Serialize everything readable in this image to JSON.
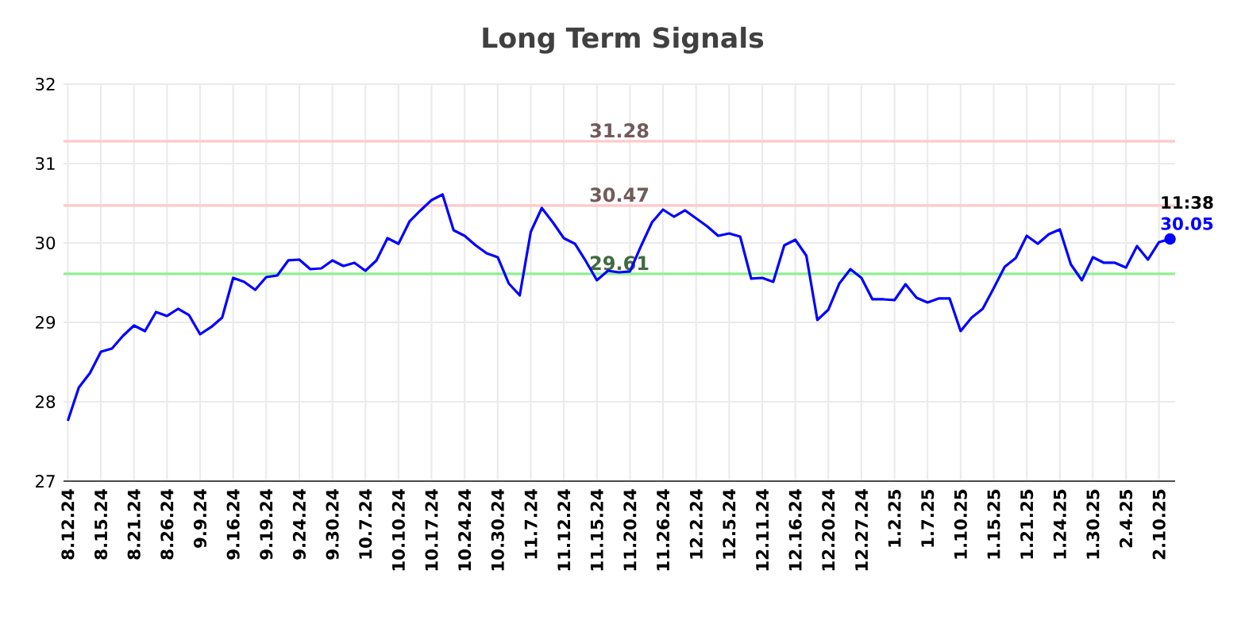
{
  "chart_data": {
    "type": "line",
    "title": "Long Term Signals",
    "categories": [
      "8.12.24",
      null,
      null,
      "8.15.24",
      null,
      null,
      "8.21.24",
      null,
      null,
      "8.26.24",
      null,
      null,
      "9.9.24",
      null,
      null,
      "9.16.24",
      null,
      null,
      "9.19.24",
      null,
      null,
      "9.24.24",
      null,
      null,
      "9.30.24",
      null,
      null,
      "10.7.24",
      null,
      null,
      "10.10.24",
      null,
      null,
      "10.17.24",
      null,
      null,
      "10.24.24",
      null,
      null,
      "10.30.24",
      null,
      null,
      "11.7.24",
      null,
      null,
      "11.12.24",
      null,
      null,
      "11.15.24",
      null,
      null,
      "11.20.24",
      null,
      null,
      "11.26.24",
      null,
      null,
      "12.2.24",
      null,
      null,
      "12.5.24",
      null,
      null,
      "12.11.24",
      null,
      null,
      "12.16.24",
      null,
      null,
      "12.20.24",
      null,
      null,
      "12.27.24",
      null,
      null,
      "1.2.25",
      null,
      null,
      "1.7.25",
      null,
      null,
      "1.10.25",
      null,
      null,
      "1.15.25",
      null,
      null,
      "1.21.25",
      null,
      null,
      "1.24.25",
      null,
      null,
      "1.30.25",
      null,
      null,
      "2.4.25",
      null,
      null,
      "2.10.25",
      null
    ],
    "series": [
      {
        "color": "#0000ff",
        "values": [
          27.76,
          28.18,
          28.36,
          28.63,
          28.67,
          28.83,
          28.96,
          28.89,
          29.13,
          29.08,
          29.17,
          29.09,
          28.85,
          28.94,
          29.06,
          29.56,
          29.51,
          29.41,
          29.57,
          29.59,
          29.78,
          29.79,
          29.67,
          29.68,
          29.78,
          29.71,
          29.75,
          29.65,
          29.78,
          30.06,
          29.99,
          30.27,
          30.41,
          30.54,
          30.61,
          30.16,
          30.09,
          29.97,
          29.87,
          29.82,
          29.49,
          29.34,
          30.14,
          30.44,
          30.26,
          30.06,
          29.99,
          29.77,
          29.53,
          29.65,
          29.63,
          29.64,
          29.96,
          30.26,
          30.42,
          30.33,
          30.41,
          30.31,
          30.21,
          30.09,
          30.12,
          30.08,
          29.55,
          29.56,
          29.51,
          29.97,
          30.04,
          29.84,
          29.03,
          29.16,
          29.49,
          29.67,
          29.56,
          29.29,
          29.29,
          29.28,
          29.48,
          29.31,
          29.25,
          29.3,
          29.3,
          28.89,
          29.06,
          29.17,
          29.43,
          29.7,
          29.81,
          30.09,
          29.99,
          30.11,
          30.17,
          29.73,
          29.53,
          29.82,
          29.75,
          29.75,
          29.69,
          29.96,
          29.79,
          30.01,
          30.05
        ]
      },
      {
        "type": "scatter",
        "color": "#0000ff",
        "marker": "circle",
        "values": [
          null,
          null,
          null,
          null,
          null,
          null,
          null,
          null,
          null,
          null,
          null,
          null,
          null,
          null,
          null,
          null,
          null,
          null,
          null,
          null,
          null,
          null,
          null,
          null,
          null,
          null,
          null,
          null,
          null,
          null,
          null,
          null,
          null,
          null,
          null,
          null,
          null,
          null,
          null,
          null,
          null,
          null,
          null,
          null,
          null,
          null,
          null,
          null,
          null,
          null,
          null,
          null,
          null,
          null,
          null,
          null,
          null,
          null,
          null,
          null,
          null,
          null,
          null,
          null,
          null,
          null,
          null,
          null,
          null,
          null,
          null,
          null,
          null,
          null,
          null,
          null,
          null,
          null,
          null,
          null,
          null,
          null,
          null,
          null,
          null,
          null,
          null,
          null,
          null,
          null,
          null,
          null,
          null,
          null,
          null,
          null,
          null,
          null,
          null,
          null,
          30.05
        ]
      }
    ],
    "ylim": [
      27,
      32
    ],
    "yticks": [
      27,
      28,
      29,
      30,
      31,
      32
    ],
    "grid": true,
    "ref_lines": [
      {
        "axis": "y",
        "value": 31.28,
        "label": "31.28",
        "color": "#ffc8c8"
      },
      {
        "axis": "y",
        "value": 30.47,
        "label": "30.47",
        "color": "#ffc8c8"
      },
      {
        "axis": "y",
        "value": 29.61,
        "label": "29.61",
        "color": "#90ee90"
      }
    ],
    "annotations": [
      "11:38",
      "30.05"
    ]
  }
}
